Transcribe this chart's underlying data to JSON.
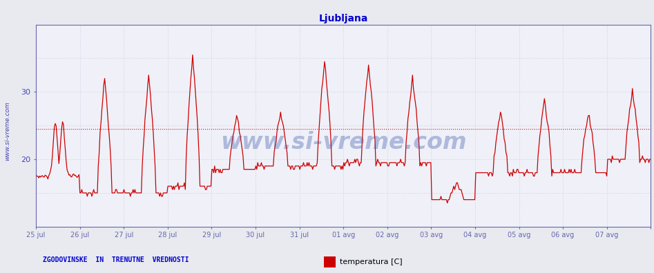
{
  "title": "Ljubljana",
  "title_color": "#0000cc",
  "title_fontsize": 10,
  "background_color": "#e8eaf0",
  "plot_bg_color": "#f0f0f8",
  "line_color": "#cc0000",
  "line_width": 0.9,
  "avg_line_color": "#cc0000",
  "avg_line_style": ":",
  "avg_value": 24.5,
  "ylim": [
    10,
    40
  ],
  "yticks": [
    20,
    30
  ],
  "grid_color": "#d0d0e8",
  "grid_linestyle": ":",
  "axis_color": "#6666aa",
  "tick_label_color": "#4444bb",
  "left_text": "www.si-vreme.com",
  "left_text_color": "#4444aa",
  "bottom_left_text": "ZGODOVINSKE  IN  TRENUTNE  VREDNOSTI",
  "bottom_left_color": "#0000cc",
  "legend_label": "temperatura [C]",
  "legend_color": "#cc0000",
  "xtick_labels": [
    "25 jul",
    "26 jul",
    "27 jul",
    "28 jul",
    "29 jul",
    "30 jul",
    "31 jul",
    "01 avg",
    "02 avg",
    "03 avg",
    "04 avg",
    "05 avg",
    "06 avg",
    "07 avg"
  ],
  "n_points": 672,
  "days": 14
}
